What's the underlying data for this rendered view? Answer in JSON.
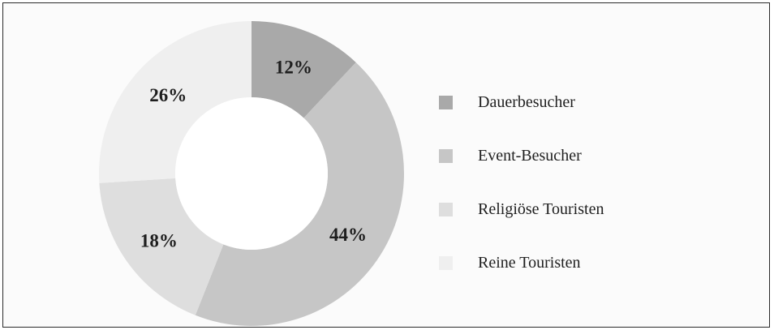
{
  "chart_data": {
    "type": "pie",
    "donut": true,
    "categories": [
      "Dauerbesucher",
      "Event-Besucher",
      "Religiöse Touristen",
      "Reine Touristen"
    ],
    "values": [
      12,
      44,
      18,
      26
    ],
    "value_labels": [
      "12%",
      "44%",
      "18%",
      "26%"
    ],
    "colors": [
      "#a9a9a9",
      "#c6c6c6",
      "#dedede",
      "#efefef"
    ],
    "start_angle": "top",
    "direction": "clockwise",
    "legend": {
      "position": "right",
      "items": [
        {
          "label": "Dauerbesucher",
          "color": "#a9a9a9"
        },
        {
          "label": "Event-Besucher",
          "color": "#c6c6c6"
        },
        {
          "label": "Religiöse Touristen",
          "color": "#dedede"
        },
        {
          "label": "Reine Touristen",
          "color": "#efefef"
        }
      ]
    }
  }
}
